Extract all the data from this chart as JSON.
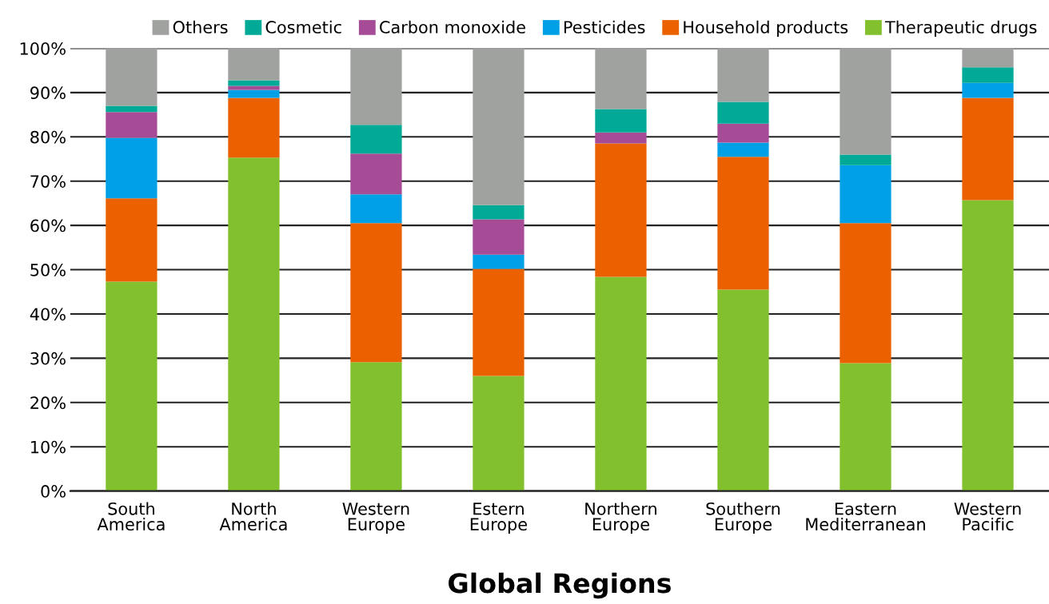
{
  "chart_data": {
    "type": "bar",
    "stacked": true,
    "xlabel": "Global Regions",
    "categories": [
      "South\nAmerica",
      "North\nAmerica",
      "Western\nEurope",
      "Estern\nEurope",
      "Northern\nEurope",
      "Southern\nEurope",
      "Eastern\nMediterranean",
      "Western\nPacific"
    ],
    "series": [
      {
        "name": "Therapeutic drugs",
        "color": "#82c02e",
        "values": [
          47.3,
          75.3,
          29.1,
          26.0,
          48.4,
          45.5,
          28.9,
          65.7
        ]
      },
      {
        "name": "Household products",
        "color": "#eb6100",
        "values": [
          18.8,
          13.5,
          31.4,
          24.2,
          30.1,
          30.0,
          31.6,
          23.1
        ]
      },
      {
        "name": "Pesticides",
        "color": "#00a0e6",
        "values": [
          13.7,
          1.8,
          6.5,
          3.2,
          0,
          3.2,
          13.1,
          3.4
        ]
      },
      {
        "name": "Carbon monoxide",
        "color": "#a64b96",
        "values": [
          5.8,
          0.9,
          9.2,
          8.0,
          2.5,
          4.3,
          0,
          0
        ]
      },
      {
        "name": "Cosmetic",
        "color": "#00aa96",
        "values": [
          1.4,
          1.3,
          6.5,
          3.2,
          5.3,
          4.9,
          2.4,
          3.5
        ]
      },
      {
        "name": "Others",
        "color": "#a0a2a0",
        "values": [
          13.0,
          7.2,
          17.3,
          35.4,
          13.7,
          12.1,
          24.0,
          4.3
        ]
      }
    ],
    "ylim": [
      0,
      100
    ],
    "yticks": [
      {
        "value": 0,
        "label": "0%"
      },
      {
        "value": 10,
        "label": "10%"
      },
      {
        "value": 20,
        "label": "20%"
      },
      {
        "value": 30,
        "label": "30%"
      },
      {
        "value": 40,
        "label": "40%"
      },
      {
        "value": 50,
        "label": "50%"
      },
      {
        "value": 60,
        "label": "60%"
      },
      {
        "value": 70,
        "label": "70%"
      },
      {
        "value": 80,
        "label": "80%"
      },
      {
        "value": 90,
        "label": "90%"
      },
      {
        "value": 100,
        "label": "100%"
      }
    ],
    "grid": "y",
    "legend": "top"
  }
}
